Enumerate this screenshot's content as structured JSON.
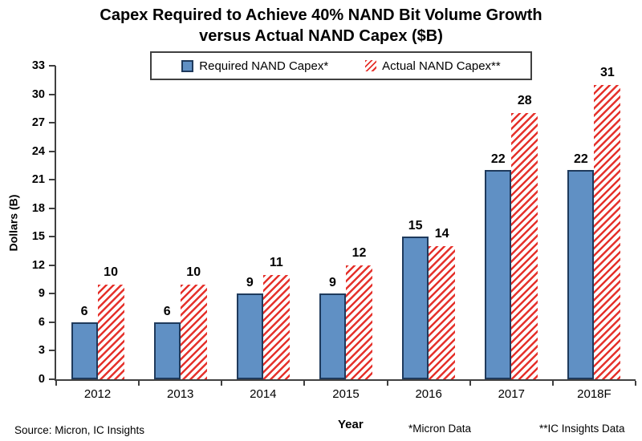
{
  "title": {
    "line1": "Capex Required to Achieve 40% NAND Bit Volume Growth",
    "line2": "versus Actual NAND Capex ($B)"
  },
  "footnotes": {
    "source": "Source: Micron, IC Insights",
    "micron": "*Micron Data",
    "ic_insights": "**IC Insights Data"
  },
  "colors": {
    "required_fill": "#6090C4",
    "required_border": "#1F3A5C",
    "actual_stripe": "#E5312B",
    "axis": "#404040",
    "text": "#000000",
    "background": "#FFFFFF"
  },
  "chart_data": {
    "type": "bar",
    "categories": [
      "2012",
      "2013",
      "2014",
      "2015",
      "2016",
      "2017",
      "2018F"
    ],
    "series": [
      {
        "name": "Required NAND Capex*",
        "style": "solid-blue",
        "values": [
          6,
          6,
          9,
          9,
          15,
          22,
          22
        ]
      },
      {
        "name": "Actual NAND Capex**",
        "style": "hatched-red",
        "values": [
          10,
          10,
          11,
          12,
          14,
          28,
          31
        ]
      }
    ],
    "title": "Capex Required to Achieve 40% NAND Bit Volume Growth versus Actual NAND Capex ($B)",
    "xlabel": "Year",
    "ylabel": "Dollars (B)",
    "ylim": [
      0,
      33
    ],
    "yticks": [
      0,
      3,
      6,
      9,
      12,
      15,
      18,
      21,
      24,
      27,
      30,
      33
    ],
    "grid": false,
    "legend_position": "top-center",
    "data_labels": true
  }
}
